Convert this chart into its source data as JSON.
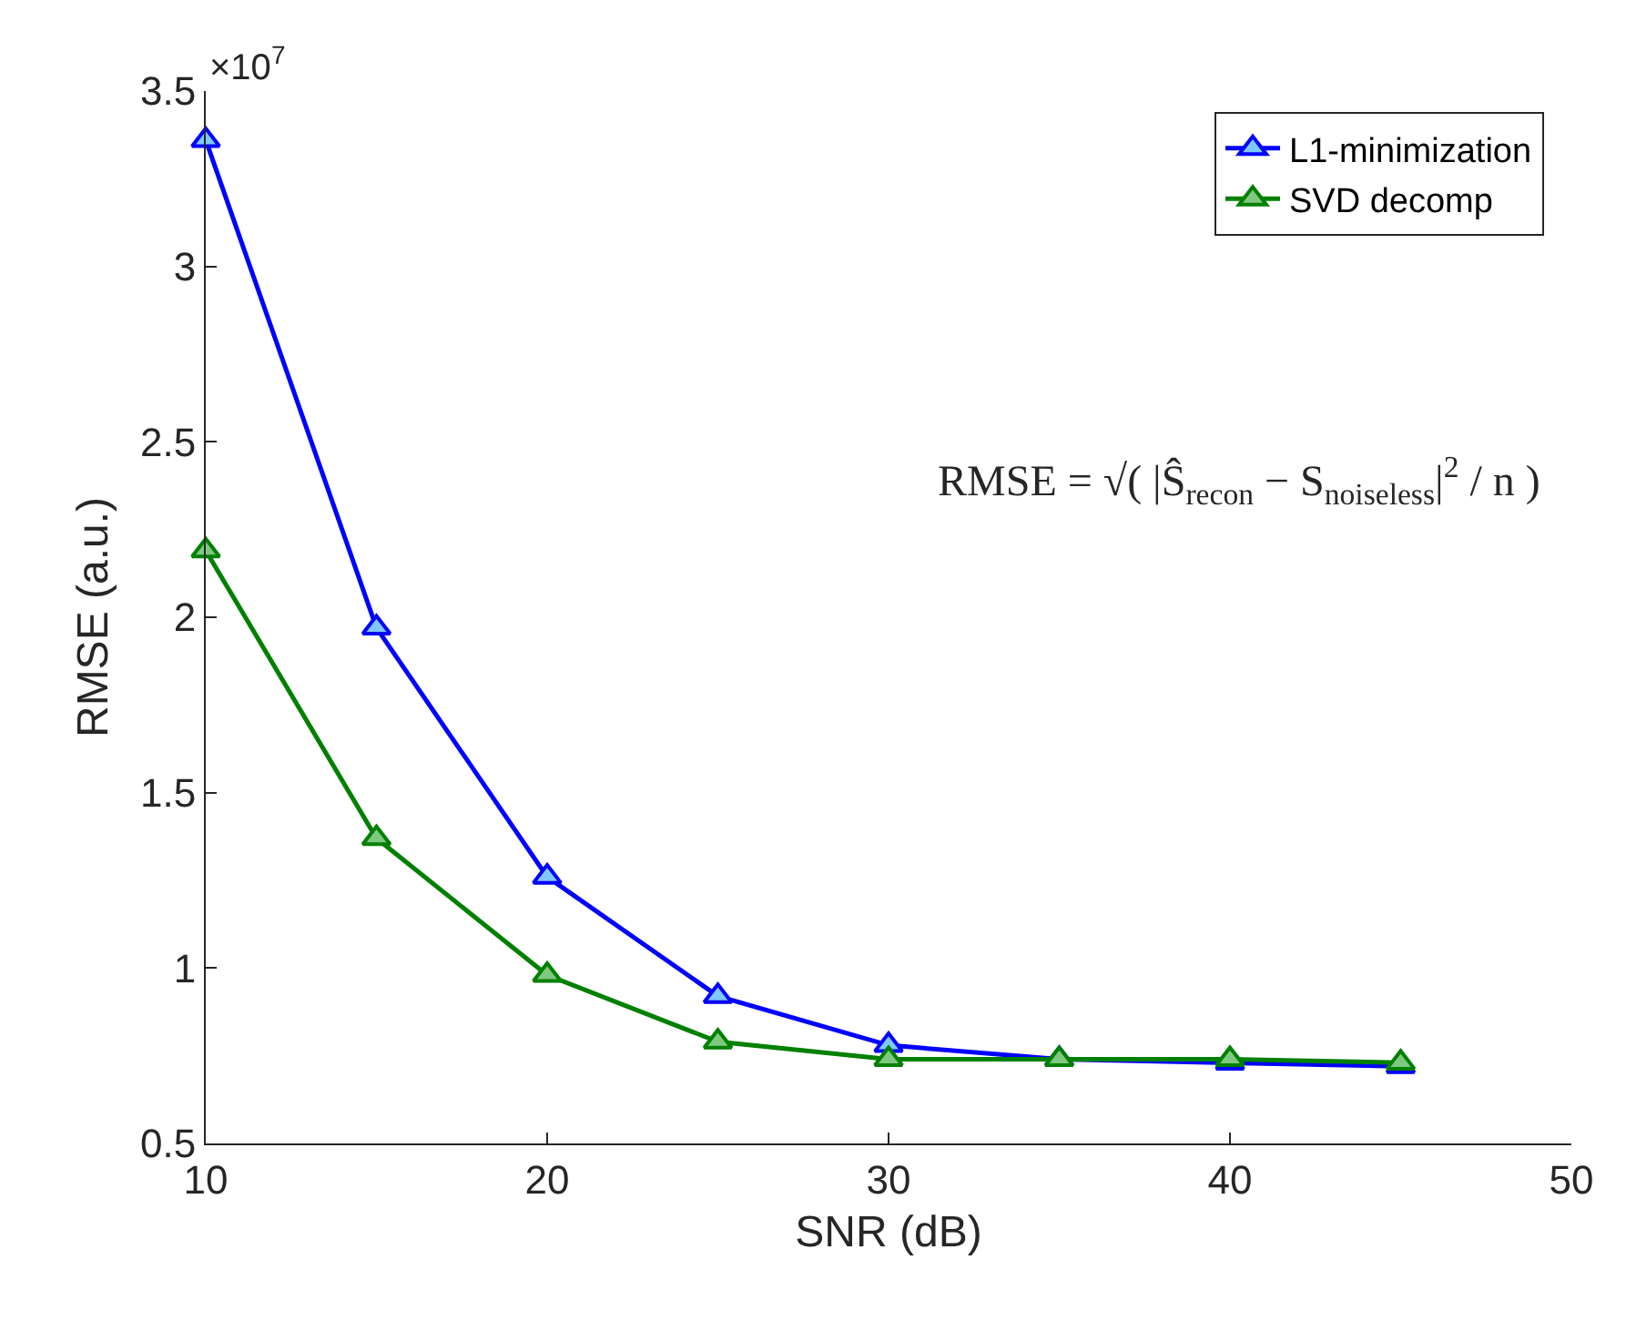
{
  "chart_data": {
    "type": "line",
    "xlabel": "SNR (dB)",
    "ylabel": "RMSE (a.u.)",
    "x": [
      10,
      15,
      20,
      25,
      30,
      35,
      40,
      45
    ],
    "series": [
      {
        "name": "L1-minimization",
        "color": "#0000ff",
        "values": [
          3.36,
          1.97,
          1.26,
          0.92,
          0.78,
          0.74,
          0.73,
          0.72
        ]
      },
      {
        "name": "SVD decomp",
        "color": "#008000",
        "values": [
          2.19,
          1.37,
          0.98,
          0.79,
          0.74,
          0.74,
          0.74,
          0.73
        ]
      }
    ],
    "xlim": [
      10,
      50
    ],
    "xticks": [
      10,
      20,
      30,
      40,
      50
    ],
    "ylim": [
      0.5,
      3.5
    ],
    "yticks": [
      0.5,
      1,
      1.5,
      2,
      2.5,
      3,
      3.5
    ],
    "annotations": [
      "×10$^{7}$",
      "RMSE = √( |Ŝ$_{recon}$ − S$_{noiseless}$|$^{2}$ / n )"
    ],
    "grid": false,
    "legend": "top right",
    "marker": "triangle",
    "line_style": "solid"
  }
}
